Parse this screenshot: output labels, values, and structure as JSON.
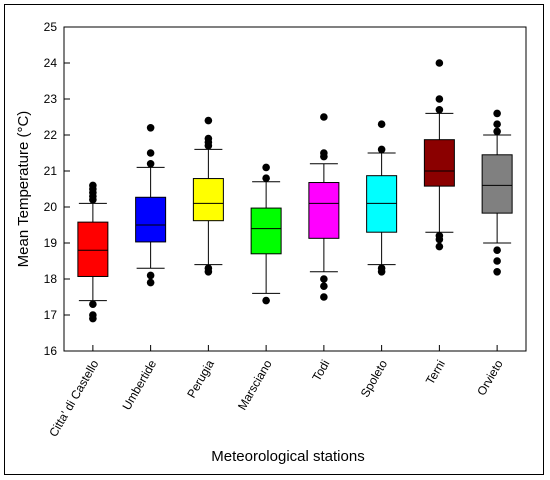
{
  "chart_data": {
    "type": "box",
    "title": "",
    "xlabel": "Meteorological stations",
    "ylabel": "Mean Temperature (°C)",
    "ylim": [
      16,
      25
    ],
    "yticks": [
      16,
      17,
      18,
      19,
      20,
      21,
      22,
      23,
      24,
      25
    ],
    "grid": false,
    "legend": "none",
    "categories": [
      "Citta' di Castello",
      "Umbertide",
      "Perugia",
      "Marsciano",
      "Todi",
      "Spoleto",
      "Terni",
      "Orvieto"
    ],
    "series": [
      {
        "category": "Citta' di Castello",
        "color": "#ff0000",
        "whisker_low": 17.4,
        "q1": 18.07,
        "median": 18.8,
        "q3": 19.58,
        "whisker_high": 20.1,
        "outliers": [
          16.9,
          17.0,
          17.3,
          20.2,
          20.3,
          20.4,
          20.5,
          20.6
        ]
      },
      {
        "category": "Umbertide",
        "color": "#0000ff",
        "whisker_low": 18.3,
        "q1": 19.03,
        "median": 19.5,
        "q3": 20.27,
        "whisker_high": 21.1,
        "outliers": [
          17.9,
          18.1,
          21.2,
          21.5,
          22.2
        ]
      },
      {
        "category": "Perugia",
        "color": "#ffff00",
        "whisker_low": 18.4,
        "q1": 19.62,
        "median": 20.1,
        "q3": 20.79,
        "whisker_high": 21.6,
        "outliers": [
          18.2,
          18.3,
          21.7,
          21.8,
          21.9,
          22.4
        ]
      },
      {
        "category": "Marsciano",
        "color": "#00ff00",
        "whisker_low": 17.6,
        "q1": 18.7,
        "median": 19.4,
        "q3": 19.97,
        "whisker_high": 20.7,
        "outliers": [
          17.4,
          20.8,
          21.1
        ]
      },
      {
        "category": "Todi",
        "color": "#ff00ff",
        "whisker_low": 18.2,
        "q1": 19.13,
        "median": 20.1,
        "q3": 20.68,
        "whisker_high": 21.2,
        "outliers": [
          17.5,
          17.8,
          18.0,
          21.4,
          21.5,
          22.5
        ]
      },
      {
        "category": "Spoleto",
        "color": "#00ffff",
        "whisker_low": 18.4,
        "q1": 19.3,
        "median": 20.1,
        "q3": 20.87,
        "whisker_high": 21.5,
        "outliers": [
          18.2,
          18.3,
          21.6,
          22.3
        ]
      },
      {
        "category": "Terni",
        "color": "#8b0000",
        "whisker_low": 19.3,
        "q1": 20.58,
        "median": 21.0,
        "q3": 21.87,
        "whisker_high": 22.6,
        "outliers": [
          18.9,
          19.1,
          19.2,
          22.7,
          23.0,
          24.0
        ]
      },
      {
        "category": "Orvieto",
        "color": "#808080",
        "whisker_low": 19.0,
        "q1": 19.83,
        "median": 20.6,
        "q3": 21.45,
        "whisker_high": 22.0,
        "outliers": [
          18.2,
          18.5,
          18.8,
          22.1,
          22.3,
          22.6
        ]
      }
    ]
  }
}
